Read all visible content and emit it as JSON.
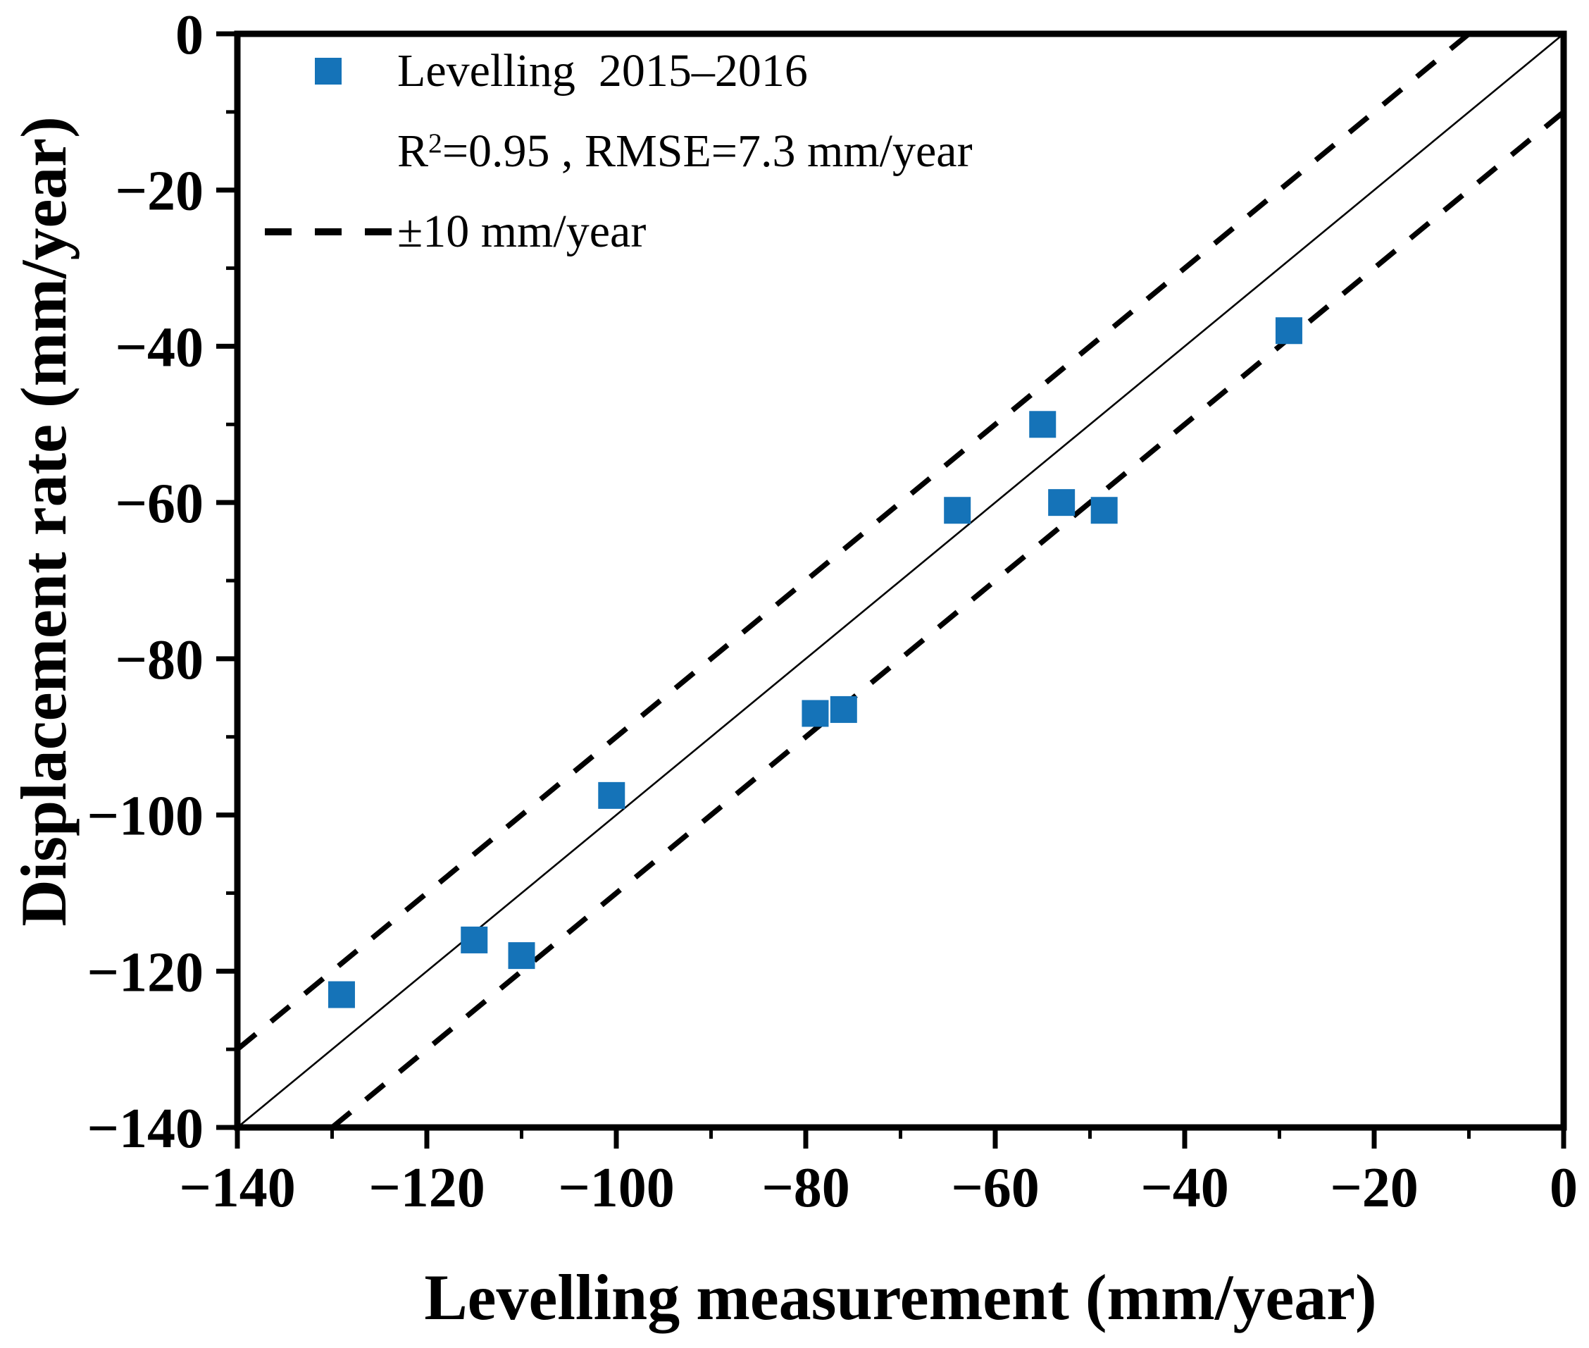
{
  "legend": {
    "series_label": "Levelling  2015–2016",
    "r2_prefix": "R",
    "r2_sup": "2",
    "r2_rest": "=0.95 , RMSE=7.3 mm/year",
    "band_label": "±10 mm/year"
  },
  "chart_data": {
    "type": "scatter",
    "title": "",
    "xlabel": "Levelling measurement (mm/year)",
    "ylabel": "Displacement rate (mm/year)",
    "xlim": [
      -140,
      0
    ],
    "ylim": [
      -140,
      0
    ],
    "grid": false,
    "legend_position": "top-left-inside",
    "x_ticks": {
      "major": [
        -140,
        -120,
        -100,
        -80,
        -60,
        -40,
        -20,
        0
      ],
      "labels": [
        "−140",
        "−120",
        "−100",
        "−80",
        "−60",
        "−40",
        "−20",
        "0"
      ],
      "minor_step": 10
    },
    "y_ticks": {
      "major": [
        0,
        -20,
        -40,
        -60,
        -80,
        -100,
        -120,
        -140
      ],
      "labels": [
        "0",
        "−20",
        "−40",
        "−60",
        "−80",
        "−100",
        "−120",
        "−140"
      ],
      "minor_step": 10
    },
    "series": [
      {
        "name": "Levelling 2015–2016",
        "marker": "square",
        "color": "#1573b8",
        "points": [
          [
            -129,
            -123
          ],
          [
            -115,
            -116
          ],
          [
            -110,
            -118
          ],
          [
            -100.5,
            -97.5
          ],
          [
            -79,
            -87
          ],
          [
            -76,
            -86.5
          ],
          [
            -64,
            -61
          ],
          [
            -55,
            -50
          ],
          [
            -53,
            -60
          ],
          [
            -48.5,
            -61
          ],
          [
            -29,
            -38
          ]
        ]
      }
    ],
    "reference_lines": [
      {
        "name": "identity",
        "style": "solid",
        "offset": 0
      },
      {
        "name": "plus-10",
        "style": "dashed",
        "offset": 10
      },
      {
        "name": "minus-10",
        "style": "dashed",
        "offset": -10
      }
    ],
    "stats": {
      "r_squared": 0.95,
      "rmse_mm_per_year": 7.3,
      "band_mm_per_year": 10
    },
    "line_color": "#000000"
  }
}
